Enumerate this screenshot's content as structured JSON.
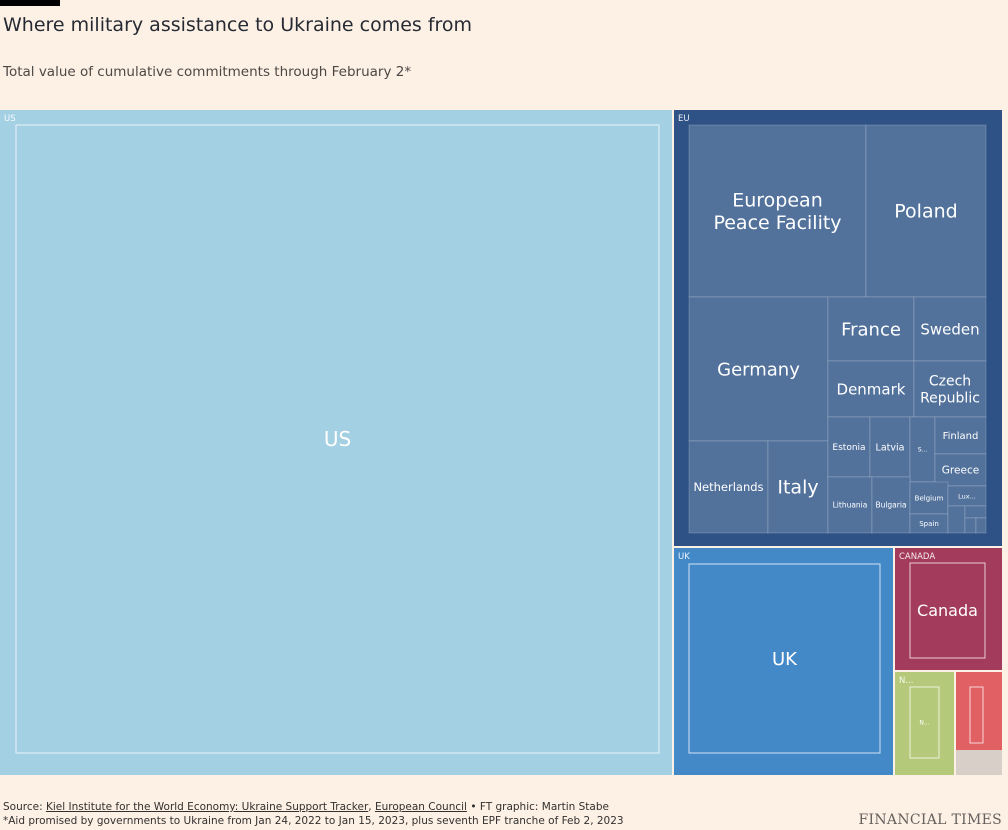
{
  "header": {
    "title": "Where military assistance to Ukraine comes from",
    "subtitle": "Total value of cumulative commitments through February 2*"
  },
  "footer": {
    "source_prefix": "Source:",
    "source_1": "Kiel Institute for the World Economy: Ukraine Support Tracker",
    "separator": ",",
    "source_2": "European Council",
    "credit": "• FT graphic: Martin Stabe",
    "note": "*Aid promised by governments to Ukraine from Jan 24, 2022 to Jan 15, 2023, plus seventh EPF tranche of Feb 2, 2023",
    "brand": "FINANCIAL TIMES"
  },
  "chart_data": {
    "type": "treemap",
    "title": "Where military assistance to Ukraine comes from",
    "subtitle": "Total value of cumulative commitments through February 2*",
    "units": "",
    "groups": [
      {
        "name": "US",
        "group_label": "US",
        "color": "#a4d0e3",
        "children": [
          {
            "name": "US",
            "label": "US",
            "value": 44.6
          }
        ]
      },
      {
        "name": "EU",
        "group_label": "EU",
        "color": "#2e5286",
        "child_color": "#52729c",
        "children": [
          {
            "name": "European Peace Facility",
            "label": "European Peace Facility",
            "value": 3.6
          },
          {
            "name": "Poland",
            "label": "Poland",
            "value": 2.4
          },
          {
            "name": "Germany",
            "label": "Germany",
            "value": 2.6
          },
          {
            "name": "France",
            "label": "France",
            "value": 0.9
          },
          {
            "name": "Sweden",
            "label": "Sweden",
            "value": 0.8
          },
          {
            "name": "Denmark",
            "label": "Denmark",
            "value": 0.7
          },
          {
            "name": "Czech Republic",
            "label": "Czech Republic",
            "value": 0.9
          },
          {
            "name": "Netherlands",
            "label": "Netherlands",
            "value": 1.1
          },
          {
            "name": "Italy",
            "label": "Italy",
            "value": 0.9
          },
          {
            "name": "Estonia",
            "label": "Estonia",
            "value": 0.4
          },
          {
            "name": "Latvia",
            "label": "Latvia",
            "value": 0.4
          },
          {
            "name": "Slovakia",
            "label": "S...",
            "value": 0.2
          },
          {
            "name": "Finland",
            "label": "Finland",
            "value": 0.3
          },
          {
            "name": "Greece",
            "label": "Greece",
            "value": 0.3
          },
          {
            "name": "Lithuania",
            "label": "Lithuania",
            "value": 0.3
          },
          {
            "name": "Bulgaria",
            "label": "Bulgaria",
            "value": 0.3
          },
          {
            "name": "Belgium",
            "label": "Belgium",
            "value": 0.2
          },
          {
            "name": "Luxembourg",
            "label": "Lux...",
            "value": 0.1
          },
          {
            "name": "Spain",
            "label": "Spain",
            "value": 0.1
          },
          {
            "name": "other-1",
            "label": "",
            "value": 0.05
          },
          {
            "name": "other-2",
            "label": "",
            "value": 0.05
          },
          {
            "name": "other-3",
            "label": "",
            "value": 0.03
          },
          {
            "name": "other-4",
            "label": "",
            "value": 0.02
          }
        ]
      },
      {
        "name": "UK",
        "group_label": "UK",
        "color": "#4389c7",
        "children": [
          {
            "name": "UK",
            "label": "UK",
            "value": 5.0
          }
        ]
      },
      {
        "name": "CANADA",
        "group_label": "CANADA",
        "color": "#a33b5d",
        "children": [
          {
            "name": "Canada",
            "label": "Canada",
            "value": 2.3
          }
        ]
      },
      {
        "name": "Norway",
        "group_label": "N...",
        "color": "#b4c97a",
        "children": [
          {
            "name": "Norway",
            "label": "N...",
            "value": 0.8
          }
        ]
      },
      {
        "name": "Other",
        "group_label": "",
        "color": "#e06064",
        "children": [
          {
            "name": "other-5",
            "label": "",
            "value": 0.5
          },
          {
            "name": "other-6",
            "label": "",
            "value": 0.3
          }
        ]
      }
    ]
  }
}
